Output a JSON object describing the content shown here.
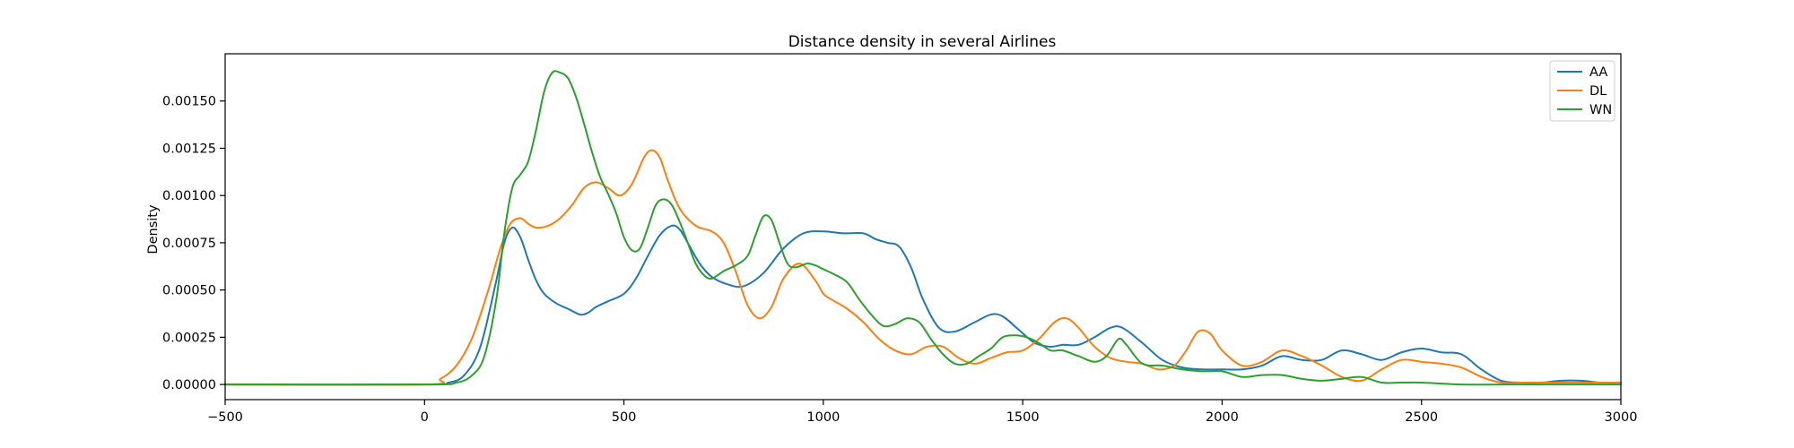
{
  "chart_data": {
    "type": "line",
    "title": "Distance density in several Airlines",
    "xlabel": "",
    "ylabel": "Density",
    "xlim": [
      -500,
      3000
    ],
    "ylim": [
      -8e-05,
      0.00175
    ],
    "xticks": [
      -500,
      0,
      500,
      1000,
      1500,
      2000,
      2500,
      3000
    ],
    "xtick_labels": [
      "−500",
      "0",
      "500",
      "1000",
      "1500",
      "2000",
      "2500",
      "3000"
    ],
    "yticks": [
      0.0,
      0.00025,
      0.0005,
      0.00075,
      0.001,
      0.00125,
      0.0015
    ],
    "ytick_labels": [
      "0.00000",
      "0.00025",
      "0.00050",
      "0.00075",
      "0.00100",
      "0.00125",
      "0.00150"
    ],
    "grid": false,
    "legend_position": "top-right",
    "series": [
      {
        "name": "AA",
        "color": "#1f77b4",
        "x": [
          -500,
          0,
          60,
          100,
          140,
          180,
          200,
          220,
          240,
          260,
          280,
          300,
          330,
          360,
          390,
          410,
          430,
          460,
          500,
          530,
          560,
          590,
          620,
          640,
          660,
          690,
          720,
          760,
          800,
          850,
          900,
          950,
          1000,
          1050,
          1100,
          1130,
          1160,
          1190,
          1220,
          1250,
          1290,
          1330,
          1380,
          1420,
          1450,
          1490,
          1530,
          1570,
          1600,
          1640,
          1680,
          1720,
          1750,
          1800,
          1850,
          1900,
          1950,
          2000,
          2050,
          2100,
          2150,
          2200,
          2250,
          2300,
          2350,
          2400,
          2450,
          2500,
          2550,
          2600,
          2650,
          2700,
          2750,
          2800,
          2850,
          2900,
          2950,
          3000
        ],
        "y": [
          0.0,
          0.0,
          1e-05,
          5e-05,
          0.0002,
          0.00055,
          0.00075,
          0.00083,
          0.00078,
          0.00066,
          0.00055,
          0.00048,
          0.00043,
          0.0004,
          0.00037,
          0.00038,
          0.00041,
          0.00044,
          0.00048,
          0.00056,
          0.00068,
          0.00079,
          0.00084,
          0.00082,
          0.00075,
          0.00064,
          0.00057,
          0.00053,
          0.00052,
          0.00059,
          0.00072,
          0.0008,
          0.00081,
          0.0008,
          0.0008,
          0.00077,
          0.00075,
          0.00073,
          0.00062,
          0.00045,
          0.0003,
          0.00028,
          0.00033,
          0.00037,
          0.00036,
          0.00029,
          0.00022,
          0.0002,
          0.00021,
          0.00021,
          0.00025,
          0.0003,
          0.0003,
          0.00022,
          0.00013,
          9e-05,
          8e-05,
          8e-05,
          8e-05,
          0.0001,
          0.00015,
          0.00013,
          0.00013,
          0.00018,
          0.00016,
          0.00013,
          0.00017,
          0.00019,
          0.00017,
          0.00016,
          8e-05,
          2e-05,
          1e-05,
          1e-05,
          2e-05,
          2e-05,
          1e-05,
          1e-05
        ]
      },
      {
        "name": "DL",
        "color": "#ff7f0e",
        "x": [
          -500,
          0,
          40,
          80,
          120,
          160,
          190,
          215,
          240,
          260,
          280,
          310,
          340,
          370,
          400,
          430,
          460,
          490,
          520,
          550,
          570,
          590,
          610,
          640,
          680,
          720,
          750,
          780,
          810,
          840,
          870,
          900,
          940,
          980,
          1000,
          1020,
          1060,
          1100,
          1140,
          1180,
          1220,
          1260,
          1300,
          1340,
          1380,
          1420,
          1460,
          1500,
          1540,
          1580,
          1610,
          1640,
          1680,
          1720,
          1760,
          1800,
          1840,
          1880,
          1910,
          1940,
          1970,
          2000,
          2050,
          2100,
          2150,
          2200,
          2250,
          2300,
          2350,
          2400,
          2450,
          2500,
          2550,
          2600,
          2650,
          2700,
          2750,
          2800,
          2850,
          2900,
          2950,
          3000
        ],
        "y": [
          0.0,
          0.0,
          3e-05,
          0.0001,
          0.00025,
          0.0005,
          0.00072,
          0.00085,
          0.00088,
          0.00085,
          0.00083,
          0.00084,
          0.00088,
          0.00095,
          0.00104,
          0.00107,
          0.00104,
          0.001,
          0.00106,
          0.0012,
          0.00124,
          0.0012,
          0.00108,
          0.00093,
          0.00084,
          0.00081,
          0.00075,
          0.0006,
          0.00042,
          0.00035,
          0.00041,
          0.00056,
          0.00064,
          0.00055,
          0.00048,
          0.00045,
          0.0004,
          0.00033,
          0.00024,
          0.00018,
          0.00016,
          0.0002,
          0.0002,
          0.00014,
          0.00011,
          0.00014,
          0.00017,
          0.00018,
          0.00024,
          0.00033,
          0.00035,
          0.0003,
          0.0002,
          0.00014,
          0.00012,
          0.00011,
          8e-05,
          0.0001,
          0.00018,
          0.00028,
          0.00027,
          0.00018,
          0.0001,
          0.00012,
          0.00018,
          0.00015,
          0.0001,
          4e-05,
          2e-05,
          8e-05,
          0.00013,
          0.00012,
          0.00011,
          9e-05,
          4e-05,
          1e-05,
          1e-05,
          1e-05,
          1e-05,
          1e-05,
          1e-05,
          1e-05
        ]
      },
      {
        "name": "WN",
        "color": "#2ca02c",
        "x": [
          -500,
          0,
          80,
          120,
          150,
          180,
          200,
          220,
          240,
          260,
          280,
          300,
          320,
          340,
          360,
          380,
          400,
          420,
          440,
          460,
          480,
          500,
          520,
          540,
          560,
          580,
          600,
          620,
          640,
          660,
          680,
          700,
          720,
          750,
          780,
          810,
          830,
          850,
          870,
          890,
          910,
          930,
          960,
          980,
          1000,
          1030,
          1060,
          1090,
          1120,
          1150,
          1180,
          1210,
          1240,
          1270,
          1300,
          1330,
          1360,
          1390,
          1420,
          1450,
          1480,
          1510,
          1540,
          1570,
          1600,
          1640,
          1680,
          1710,
          1740,
          1760,
          1800,
          1850,
          1900,
          1950,
          2000,
          2050,
          2100,
          2150,
          2200,
          2250,
          2300,
          2350,
          2400,
          2450,
          2500,
          2600,
          2700,
          2800,
          2900,
          3000
        ],
        "y": [
          0.0,
          0.0,
          1e-05,
          5e-05,
          0.00015,
          0.00045,
          0.0008,
          0.00104,
          0.00111,
          0.00118,
          0.00135,
          0.00155,
          0.00165,
          0.00165,
          0.00162,
          0.00152,
          0.00138,
          0.00123,
          0.0011,
          0.00101,
          0.00091,
          0.00078,
          0.00071,
          0.00072,
          0.00083,
          0.00095,
          0.00098,
          0.00095,
          0.00086,
          0.00075,
          0.00064,
          0.00058,
          0.00056,
          0.0006,
          0.00063,
          0.00068,
          0.00079,
          0.00089,
          0.00087,
          0.00075,
          0.00064,
          0.00062,
          0.00064,
          0.00063,
          0.00061,
          0.00058,
          0.00054,
          0.00045,
          0.00037,
          0.00031,
          0.00032,
          0.00035,
          0.00033,
          0.00024,
          0.00016,
          0.00011,
          0.00011,
          0.00015,
          0.00019,
          0.00025,
          0.00026,
          0.00025,
          0.00022,
          0.00018,
          0.00018,
          0.00015,
          0.00012,
          0.00015,
          0.00024,
          0.00021,
          0.00011,
          0.0001,
          8e-05,
          7e-05,
          7e-05,
          4e-05,
          5e-05,
          5e-05,
          3e-05,
          2e-05,
          3e-05,
          4e-05,
          1e-05,
          1e-05,
          1e-05,
          0.0,
          0.0,
          0.0,
          0.0,
          0.0
        ]
      }
    ]
  }
}
